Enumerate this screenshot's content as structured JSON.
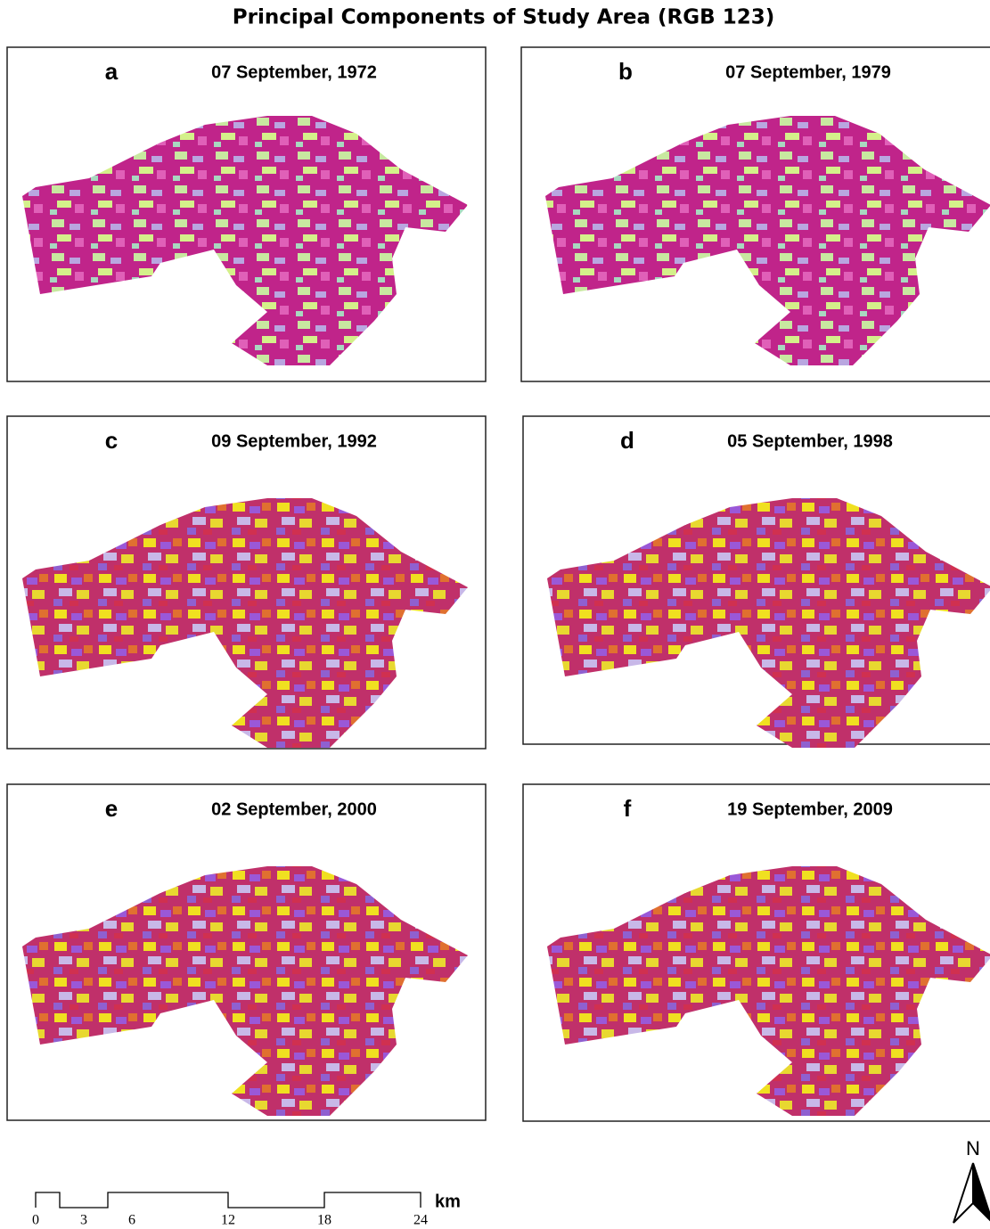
{
  "title": "Principal Components of Study Area (RGB 123)",
  "panels": [
    {
      "letter": "a",
      "date": "07 September, 1972"
    },
    {
      "letter": "b",
      "date": "07 September, 1979"
    },
    {
      "letter": "c",
      "date": "09 September, 1992"
    },
    {
      "letter": "d",
      "date": "05 September, 1998"
    },
    {
      "letter": "e",
      "date": "02 September, 2000"
    },
    {
      "letter": "f",
      "date": "19 September, 2009"
    }
  ],
  "scale_bar": {
    "ticks": [
      0,
      3,
      6,
      12,
      18,
      24
    ],
    "unit": "km"
  },
  "north_arrow": "N"
}
